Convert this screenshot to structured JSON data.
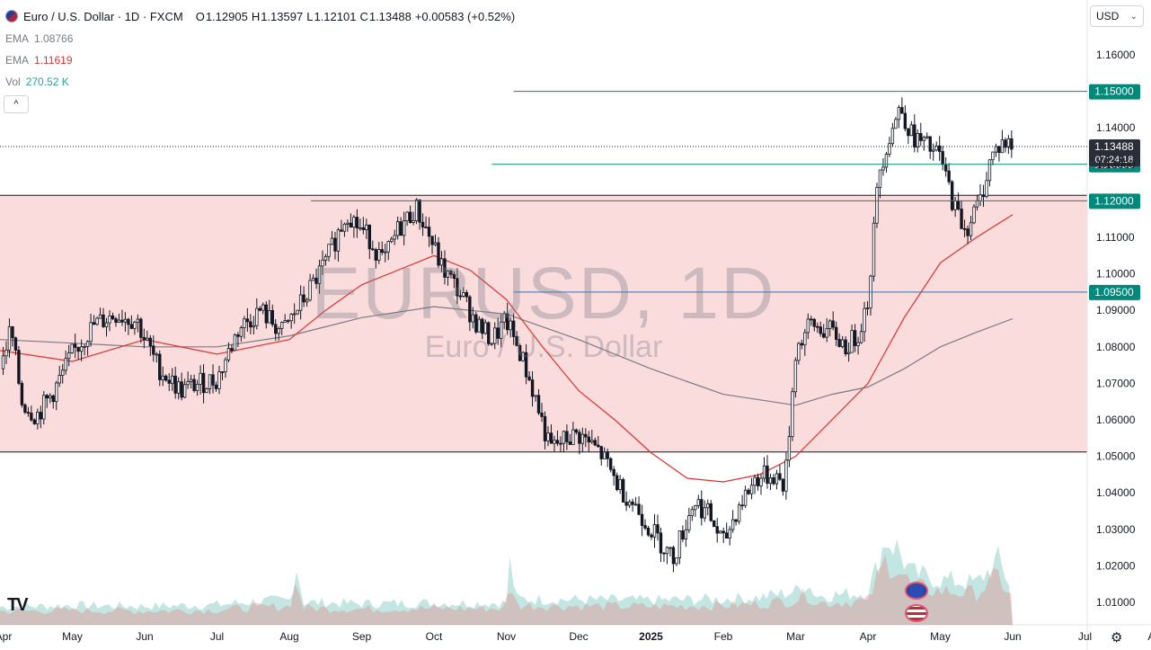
{
  "header": {
    "title": "Euro / U.S. Dollar · 1D · FXCM",
    "ohlc": [
      {
        "label": "O",
        "value": "1.12905"
      },
      {
        "label": "H",
        "value": "1.13597"
      },
      {
        "label": "L",
        "value": "1.12101"
      },
      {
        "label": "C",
        "value": "1.13488"
      }
    ],
    "change": "+0.00583 (+0.52%)"
  },
  "indicators": [
    {
      "label": "EMA",
      "value": "1.08766",
      "color": "#787b86"
    },
    {
      "label": "EMA",
      "value": "1.11619",
      "color": "#e0312f"
    },
    {
      "label": "Vol",
      "value": "270.52 K",
      "color": "#26a69a"
    }
  ],
  "collapse_icon": "^",
  "currency": {
    "selected": "USD"
  },
  "watermark": {
    "symbol": "EURUSD, 1D",
    "name": "Euro / U.S. Dollar"
  },
  "tv_logo": "TV",
  "settings_icon": "⚙",
  "colors": {
    "hline": "#00897b",
    "zone_fill": "#fbdcdc",
    "ema_fast": "#e0312f",
    "ema_slow": "#787b86",
    "candle": "#131722"
  },
  "chart_data": {
    "type": "candlestick",
    "symbol": "EURUSD",
    "timeframe": "1D",
    "y_ticks": [
      "1.16000",
      "1.14000",
      "1.13000",
      "1.11000",
      "1.10000",
      "1.09000",
      "1.08000",
      "1.07000",
      "1.06000",
      "1.05000",
      "1.04000",
      "1.03000",
      "1.02000",
      "1.01000"
    ],
    "x_ticks": [
      {
        "label": "Apr",
        "t": 0.0
      },
      {
        "label": "May",
        "t": 1.0
      },
      {
        "label": "Jun",
        "t": 2.0
      },
      {
        "label": "Jul",
        "t": 3.0
      },
      {
        "label": "Aug",
        "t": 4.0
      },
      {
        "label": "Sep",
        "t": 5.0
      },
      {
        "label": "Oct",
        "t": 6.0
      },
      {
        "label": "Nov",
        "t": 7.0
      },
      {
        "label": "Dec",
        "t": 8.0
      },
      {
        "label": "2025",
        "t": 9.0
      },
      {
        "label": "Feb",
        "t": 10.0
      },
      {
        "label": "Mar",
        "t": 11.0
      },
      {
        "label": "Apr",
        "t": 12.0
      },
      {
        "label": "May",
        "t": 13.0
      },
      {
        "label": "Jun",
        "t": 14.0
      },
      {
        "label": "Jul",
        "t": 15.0
      },
      {
        "label": "Aug",
        "t": 16.0
      }
    ],
    "horizontal_levels": [
      {
        "label": "1.15000",
        "value": 1.15,
        "start_t": 7.1
      },
      {
        "label": "1.13000",
        "value": 1.13,
        "start_t": 6.8
      },
      {
        "label": "1.12000",
        "value": 1.12,
        "start_t": 4.3
      },
      {
        "label": "1.09500",
        "value": 1.095,
        "start_t": 7.1
      }
    ],
    "last_price": {
      "label": "1.13488",
      "value": 1.13488,
      "countdown": "07:24:18"
    },
    "zone": {
      "top": 1.1215,
      "bottom": 1.0512
    },
    "path": [
      [
        0.0,
        1.074
      ],
      [
        0.15,
        1.085
      ],
      [
        0.3,
        1.065
      ],
      [
        0.5,
        1.061
      ],
      [
        0.75,
        1.068
      ],
      [
        1.0,
        1.078
      ],
      [
        1.3,
        1.086
      ],
      [
        1.6,
        1.089
      ],
      [
        1.9,
        1.087
      ],
      [
        2.0,
        1.082
      ],
      [
        2.2,
        1.074
      ],
      [
        2.5,
        1.068
      ],
      [
        2.75,
        1.07
      ],
      [
        3.0,
        1.071
      ],
      [
        3.3,
        1.085
      ],
      [
        3.6,
        1.09
      ],
      [
        3.9,
        1.084
      ],
      [
        4.2,
        1.093
      ],
      [
        4.5,
        1.103
      ],
      [
        4.8,
        1.117
      ],
      [
        4.95,
        1.113
      ],
      [
        5.1,
        1.11
      ],
      [
        5.3,
        1.103
      ],
      [
        5.5,
        1.112
      ],
      [
        5.75,
        1.118
      ],
      [
        5.9,
        1.112
      ],
      [
        6.1,
        1.102
      ],
      [
        6.35,
        1.095
      ],
      [
        6.6,
        1.086
      ],
      [
        6.8,
        1.082
      ],
      [
        7.0,
        1.087
      ],
      [
        7.2,
        1.078
      ],
      [
        7.4,
        1.066
      ],
      [
        7.6,
        1.052
      ],
      [
        7.85,
        1.055
      ],
      [
        8.0,
        1.056
      ],
      [
        8.3,
        1.051
      ],
      [
        8.55,
        1.042
      ],
      [
        8.8,
        1.036
      ],
      [
        9.0,
        1.03
      ],
      [
        9.3,
        1.022
      ],
      [
        9.6,
        1.038
      ],
      [
        9.8,
        1.034
      ],
      [
        10.0,
        1.026
      ],
      [
        10.2,
        1.036
      ],
      [
        10.45,
        1.044
      ],
      [
        10.7,
        1.045
      ],
      [
        10.85,
        1.042
      ],
      [
        11.0,
        1.079
      ],
      [
        11.2,
        1.086
      ],
      [
        11.5,
        1.084
      ],
      [
        11.7,
        1.08
      ],
      [
        11.85,
        1.083
      ],
      [
        12.0,
        1.093
      ],
      [
        12.15,
        1.128
      ],
      [
        12.3,
        1.138
      ],
      [
        12.45,
        1.146
      ],
      [
        12.6,
        1.138
      ],
      [
        12.8,
        1.135
      ],
      [
        13.0,
        1.132
      ],
      [
        13.2,
        1.118
      ],
      [
        13.35,
        1.112
      ],
      [
        13.55,
        1.12
      ],
      [
        13.7,
        1.132
      ],
      [
        13.85,
        1.136
      ],
      [
        14.0,
        1.1349
      ]
    ],
    "ema_fast_path": [
      [
        0.0,
        1.079
      ],
      [
        1.0,
        1.076
      ],
      [
        2.0,
        1.082
      ],
      [
        3.0,
        1.078
      ],
      [
        3.5,
        1.08
      ],
      [
        4.0,
        1.082
      ],
      [
        4.5,
        1.09
      ],
      [
        5.0,
        1.097
      ],
      [
        5.5,
        1.101
      ],
      [
        6.0,
        1.105
      ],
      [
        6.5,
        1.101
      ],
      [
        7.0,
        1.093
      ],
      [
        7.5,
        1.08
      ],
      [
        8.0,
        1.068
      ],
      [
        8.5,
        1.06
      ],
      [
        9.0,
        1.051
      ],
      [
        9.5,
        1.044
      ],
      [
        10.0,
        1.043
      ],
      [
        10.5,
        1.045
      ],
      [
        11.0,
        1.05
      ],
      [
        11.5,
        1.06
      ],
      [
        12.0,
        1.07
      ],
      [
        12.5,
        1.088
      ],
      [
        13.0,
        1.103
      ],
      [
        13.5,
        1.11
      ],
      [
        14.0,
        1.1162
      ]
    ],
    "ema_slow_path": [
      [
        0.0,
        1.082
      ],
      [
        1.0,
        1.081
      ],
      [
        2.0,
        1.08
      ],
      [
        3.0,
        1.08
      ],
      [
        4.0,
        1.083
      ],
      [
        5.0,
        1.088
      ],
      [
        6.0,
        1.091
      ],
      [
        7.0,
        1.089
      ],
      [
        8.0,
        1.082
      ],
      [
        9.0,
        1.074
      ],
      [
        10.0,
        1.067
      ],
      [
        11.0,
        1.064
      ],
      [
        11.5,
        1.067
      ],
      [
        12.0,
        1.069
      ],
      [
        12.5,
        1.074
      ],
      [
        13.0,
        1.08
      ],
      [
        13.5,
        1.084
      ],
      [
        14.0,
        1.0877
      ]
    ],
    "volume_path": [
      [
        0.0,
        0.28
      ],
      [
        1.0,
        0.3
      ],
      [
        2.0,
        0.29
      ],
      [
        3.0,
        0.31
      ],
      [
        3.5,
        0.36
      ],
      [
        4.0,
        0.38
      ],
      [
        4.1,
        0.9
      ],
      [
        4.2,
        0.35
      ],
      [
        5.0,
        0.33
      ],
      [
        6.0,
        0.34
      ],
      [
        7.0,
        0.34
      ],
      [
        7.05,
        0.95
      ],
      [
        7.15,
        0.4
      ],
      [
        8.0,
        0.39
      ],
      [
        9.0,
        0.38
      ],
      [
        10.0,
        0.4
      ],
      [
        10.5,
        0.43
      ],
      [
        11.0,
        0.52
      ],
      [
        11.15,
        0.65
      ],
      [
        11.3,
        0.45
      ],
      [
        12.0,
        0.5
      ],
      [
        12.25,
        1.35
      ],
      [
        12.4,
        1.2
      ],
      [
        12.6,
        0.8
      ],
      [
        13.0,
        0.7
      ],
      [
        13.5,
        0.65
      ],
      [
        13.8,
        1.0
      ],
      [
        14.0,
        0.55
      ]
    ]
  }
}
